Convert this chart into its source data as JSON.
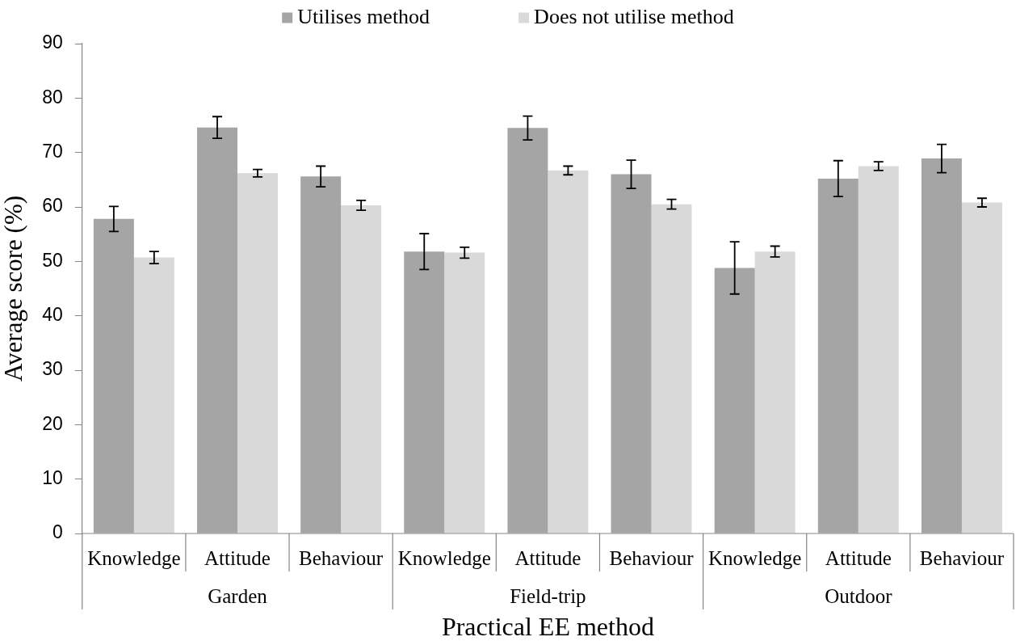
{
  "chart_data": {
    "type": "bar",
    "xlabel": "Practical EE method",
    "ylabel": "Average score (%)",
    "categories": [
      "Knowledge",
      "Attitude",
      "Behaviour",
      "Knowledge",
      "Attitude",
      "Behaviour",
      "Knowledge",
      "Attitude",
      "Behaviour"
    ],
    "annotations": [
      "Garden",
      "Field-trip",
      "Outdoor"
    ],
    "series": [
      {
        "name": "Utilises method",
        "color": "#a5a5a5",
        "values": [
          57.8,
          74.6,
          65.6,
          51.8,
          74.5,
          66.0,
          48.8,
          65.2,
          68.9
        ],
        "errors": [
          2.3,
          2.0,
          1.9,
          3.3,
          2.2,
          2.6,
          4.8,
          3.3,
          2.6
        ]
      },
      {
        "name": "Does not utilise method",
        "color": "#d9d9d9",
        "values": [
          50.7,
          66.2,
          60.3,
          51.6,
          66.7,
          60.5,
          51.8,
          67.5,
          60.8
        ],
        "errors": [
          1.1,
          0.7,
          0.9,
          1.0,
          0.8,
          0.9,
          1.0,
          0.8,
          0.8
        ]
      }
    ],
    "ylim": [
      0,
      90
    ],
    "yticks": [
      0,
      10,
      20,
      30,
      40,
      50,
      60,
      70,
      80,
      90
    ],
    "legend": "top"
  }
}
